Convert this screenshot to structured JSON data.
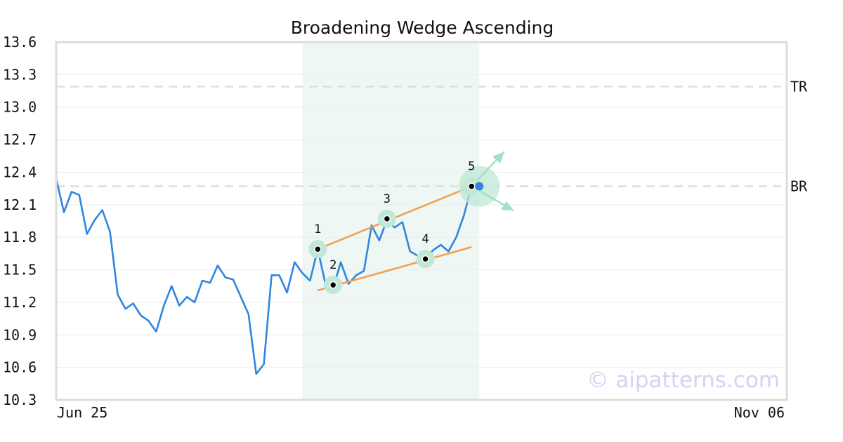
{
  "chart_data": {
    "type": "line",
    "title": "Broadening Wedge Ascending",
    "x_tick_labels": [
      "Jun 25",
      "Nov 06"
    ],
    "ylim": [
      10.3,
      13.6
    ],
    "y_ticks": [
      10.3,
      10.6,
      10.9,
      11.2,
      11.5,
      11.8,
      12.1,
      12.4,
      12.7,
      13.0,
      13.3,
      13.6
    ],
    "grid": true,
    "legend": "none",
    "series": [
      {
        "color": "#2f86de",
        "values": [
          12.34,
          12.03,
          12.22,
          12.19,
          11.83,
          11.96,
          12.05,
          11.85,
          11.27,
          11.14,
          11.19,
          11.08,
          11.03,
          10.93,
          11.17,
          11.35,
          11.17,
          11.25,
          11.2,
          11.4,
          11.38,
          11.54,
          11.43,
          11.41,
          11.25,
          11.09,
          10.54,
          10.63,
          11.45,
          11.45,
          11.29,
          11.57,
          11.47,
          11.4,
          11.69,
          11.37,
          11.33,
          11.57,
          11.37,
          11.45,
          11.49,
          11.91,
          11.77,
          11.96,
          11.89,
          11.94,
          11.67,
          11.63,
          11.6,
          11.68,
          11.73,
          11.67,
          11.8,
          12.0,
          12.27
        ]
      }
    ],
    "highlight_region": {
      "from_index": 32,
      "to_index": 55,
      "color": "#eef7f3"
    },
    "reference_lines": [
      {
        "label": "TR",
        "value": 13.19,
        "color": "#dddddd"
      },
      {
        "label": "BR",
        "value": 12.27,
        "color": "#dddddd"
      }
    ],
    "pattern_points": [
      {
        "label": "1",
        "index": 34,
        "value": 11.69
      },
      {
        "label": "2",
        "index": 36,
        "value": 11.36
      },
      {
        "label": "3",
        "index": 43,
        "value": 11.97
      },
      {
        "label": "4",
        "index": 48,
        "value": 11.6
      },
      {
        "label": "5",
        "index": 54,
        "value": 12.27
      }
    ],
    "trend_lines": [
      {
        "from_index": 34,
        "from_value": 11.69,
        "to_index": 54,
        "to_value": 12.27,
        "color": "#f4a04a"
      },
      {
        "from_index": 34,
        "from_value": 11.31,
        "to_index": 54,
        "to_value": 11.71,
        "color": "#f4a04a"
      }
    ],
    "breakout_point": {
      "index": 55,
      "value": 12.27,
      "color": "#2f86de"
    },
    "watermark": "© aipatterns.com",
    "colors": {
      "line": "#2f86de",
      "trend": "#f4a04a",
      "marker_halo": "#bfe8d6",
      "arrow": "#9ee2c4",
      "reference": "#dddddd",
      "watermark": "#d4d3f3"
    }
  }
}
